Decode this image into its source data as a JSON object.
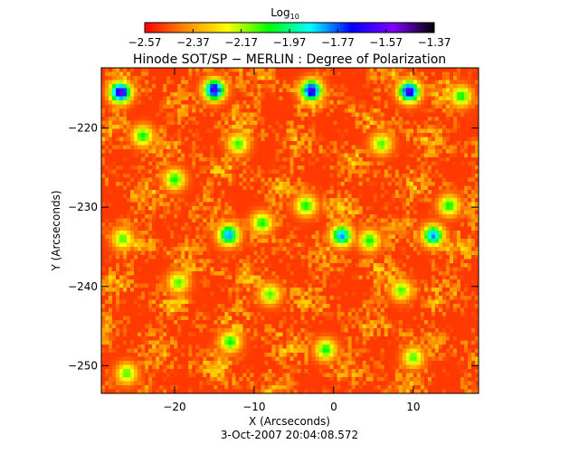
{
  "chart_data": {
    "type": "heatmap",
    "title": "Hinode SOT/SP − MERLIN : Degree of Polarization",
    "colorbar": {
      "title_base": "Log",
      "title_sub": "10",
      "range": [
        -2.57,
        -1.37
      ],
      "ticks": [
        {
          "value": -2.57,
          "label": "−2.57"
        },
        {
          "value": -2.37,
          "label": "−2.37"
        },
        {
          "value": -2.17,
          "label": "−2.17"
        },
        {
          "value": -1.97,
          "label": "−1.97"
        },
        {
          "value": -1.77,
          "label": "−1.77"
        },
        {
          "value": -1.57,
          "label": "−1.57"
        },
        {
          "value": -1.37,
          "label": "−1.37"
        }
      ],
      "colormap": [
        "#ff0000",
        "#ff8c00",
        "#ffff00",
        "#00ff00",
        "#00ffff",
        "#0000ff",
        "#8000ff",
        "#000000"
      ]
    },
    "xlabel": "X (Arcseconds)",
    "ylabel": "Y (Arcseconds)",
    "xlim": [
      -29.2,
      18.2
    ],
    "ylim": [
      -253.5,
      -212.4
    ],
    "xticks": [
      {
        "value": -20,
        "label": "−20"
      },
      {
        "value": -10,
        "label": "−10"
      },
      {
        "value": 0,
        "label": "0"
      },
      {
        "value": 10,
        "label": "10"
      }
    ],
    "yticks": [
      {
        "value": -220,
        "label": "−220"
      },
      {
        "value": -230,
        "label": "−230"
      },
      {
        "value": -240,
        "label": "−240"
      },
      {
        "value": -250,
        "label": "−250"
      }
    ],
    "timestamp": "3-Oct-2007 20:04:08.572",
    "features": {
      "background_level": -2.5,
      "strong_patches": [
        {
          "x": -26.8,
          "y": -215.5,
          "value": -1.55
        },
        {
          "x": -15.0,
          "y": -215.2,
          "value": -1.6
        },
        {
          "x": -2.8,
          "y": -215.3,
          "value": -1.6
        },
        {
          "x": 9.5,
          "y": -215.4,
          "value": -1.58
        },
        {
          "x": -13.2,
          "y": -233.5,
          "value": -1.8
        },
        {
          "x": 1.0,
          "y": -233.6,
          "value": -1.8
        },
        {
          "x": 12.5,
          "y": -233.6,
          "value": -1.8
        },
        {
          "x": -24.0,
          "y": -221.0,
          "value": -2.05
        },
        {
          "x": -20.0,
          "y": -226.5,
          "value": -2.05
        },
        {
          "x": -12.0,
          "y": -222.0,
          "value": -2.08
        },
        {
          "x": -3.5,
          "y": -229.8,
          "value": -2.05
        },
        {
          "x": 6.0,
          "y": -222.0,
          "value": -2.1
        },
        {
          "x": 14.5,
          "y": -229.8,
          "value": -2.05
        },
        {
          "x": -26.5,
          "y": -234.0,
          "value": -2.1
        },
        {
          "x": -9.0,
          "y": -232.0,
          "value": -2.05
        },
        {
          "x": 4.5,
          "y": -234.2,
          "value": -2.05
        },
        {
          "x": -19.5,
          "y": -239.5,
          "value": -2.1
        },
        {
          "x": -8.0,
          "y": -241.0,
          "value": -2.1
        },
        {
          "x": 8.5,
          "y": -240.5,
          "value": -2.1
        },
        {
          "x": -13.0,
          "y": -247.0,
          "value": -2.05
        },
        {
          "x": -1.0,
          "y": -248.0,
          "value": -2.05
        },
        {
          "x": 10.0,
          "y": -249.0,
          "value": -2.1
        },
        {
          "x": -26.0,
          "y": -251.0,
          "value": -2.1
        },
        {
          "x": 16.0,
          "y": -216.0,
          "value": -2.05
        }
      ]
    }
  }
}
